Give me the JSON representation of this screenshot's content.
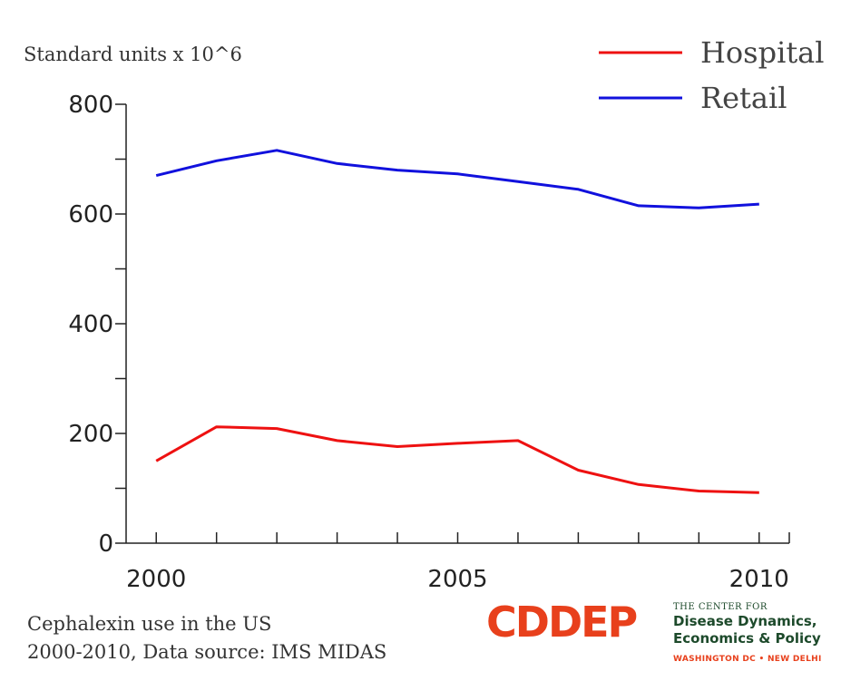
{
  "chart_data": {
    "type": "line",
    "title": "",
    "ylabel": "Standard units x 10^6",
    "xlabel": "",
    "x": [
      2000,
      2001,
      2002,
      2003,
      2004,
      2005,
      2006,
      2007,
      2008,
      2009,
      2010
    ],
    "xlim": [
      1999.5,
      2010.5
    ],
    "ylim": [
      0,
      800
    ],
    "x_tick_labels": [
      2000,
      2005,
      2010
    ],
    "y_tick_labels": [
      0,
      200,
      400,
      600,
      800
    ],
    "x_minor_ticks": [
      2000,
      2001,
      2002,
      2003,
      2004,
      2005,
      2006,
      2007,
      2008,
      2009,
      2010
    ],
    "y_minor_ticks": [
      0,
      100,
      200,
      300,
      400,
      500,
      600,
      700,
      800
    ],
    "legend_position": "top-right",
    "grid": false,
    "series": [
      {
        "name": "Hospital",
        "color": "#ee1111",
        "values": [
          150,
          212,
          209,
          187,
          176,
          182,
          187,
          133,
          107,
          95,
          92
        ]
      },
      {
        "name": "Retail",
        "color": "#1111dd",
        "values": [
          670,
          697,
          716,
          692,
          680,
          673,
          659,
          645,
          615,
          611,
          618
        ]
      }
    ]
  },
  "caption": {
    "line1": "Cephalexin use in the US",
    "line2": "2000-2010, Data source: IMS MIDAS"
  },
  "logo": {
    "mark": "CDDEP",
    "line1": "THE CENTER FOR",
    "line2": "Disease Dynamics,",
    "line3": "Economics & Policy",
    "line4": "WASHINGTON DC • NEW DELHI"
  }
}
